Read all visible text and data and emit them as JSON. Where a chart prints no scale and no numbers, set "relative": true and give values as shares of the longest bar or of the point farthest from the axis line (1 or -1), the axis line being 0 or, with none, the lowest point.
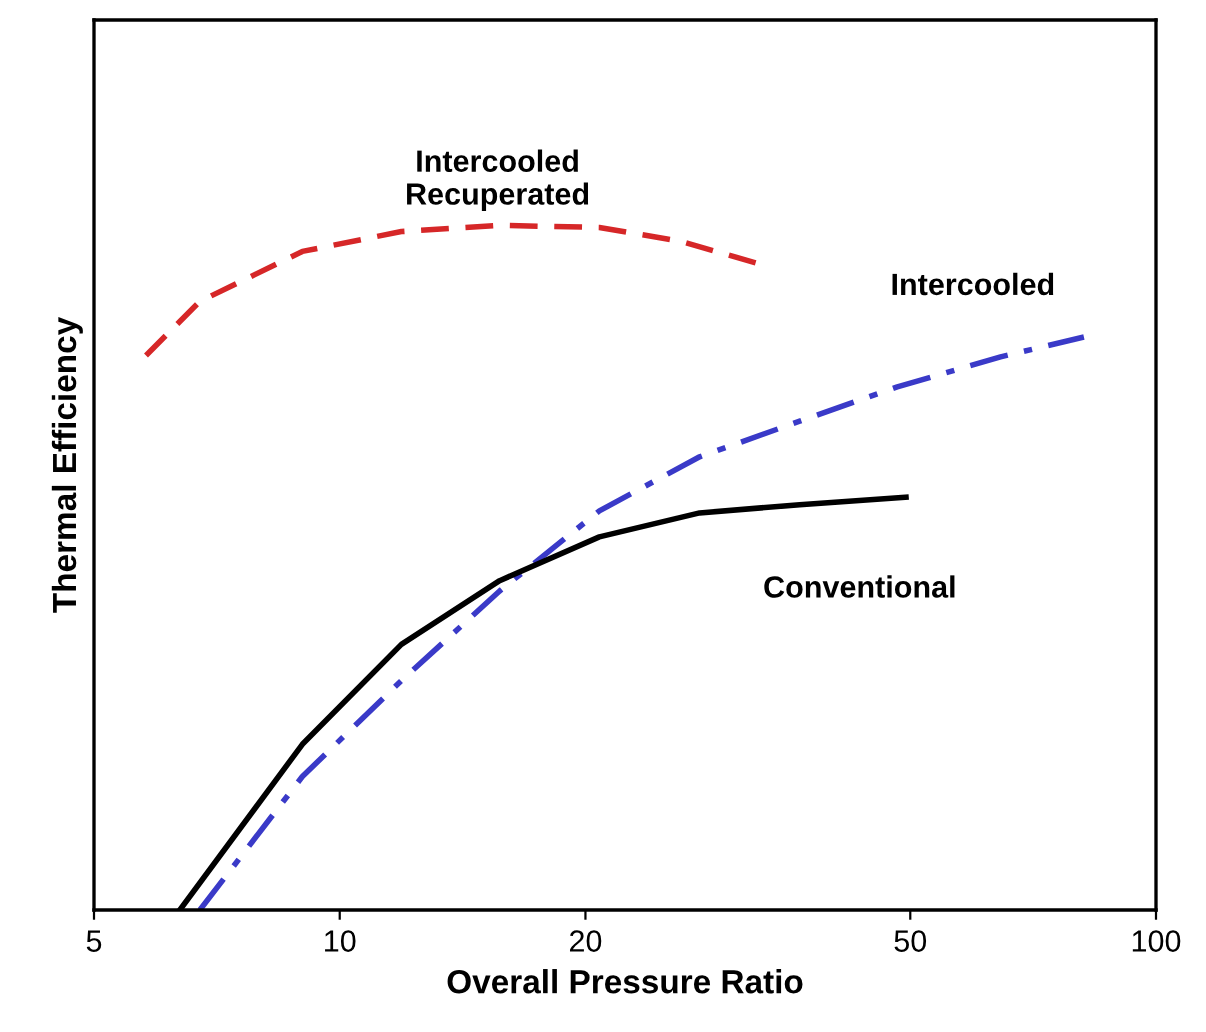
{
  "chart_data": {
    "type": "line",
    "xlabel": "Overall Pressure Ratio",
    "ylabel": "Thermal Efficiency",
    "log": "x",
    "xlim": [
      5,
      100
    ],
    "xticks": [
      5,
      10,
      20,
      50,
      100
    ],
    "relative": true,
    "grid": false,
    "legend": false,
    "series": [
      {
        "name": "Intercooled\nRecuperated",
        "color": "#d62728",
        "line_style": "dashed",
        "x": [
          5.79,
          6.74,
          9.0,
          11.9,
          15.7,
          20.8,
          26.1,
          32.4
        ],
        "values": [
          0.81,
          0.889,
          0.962,
          0.991,
          1.0,
          0.997,
          0.977,
          0.945
        ]
      },
      {
        "name": "Intercooled",
        "color": "#3a3ac8",
        "line_style": "dashdot",
        "x": [
          6.74,
          9.0,
          11.9,
          15.7,
          20.8,
          27.6,
          36.6,
          48.2,
          64.5,
          81.6
        ],
        "values": [
          0,
          0.195,
          0.335,
          0.466,
          0.583,
          0.662,
          0.714,
          0.764,
          0.808,
          0.837
        ]
      },
      {
        "name": "Conventional",
        "color": "#000000",
        "line_style": "solid",
        "x": [
          6.37,
          9.0,
          11.9,
          15.7,
          20.8,
          27.6,
          36.6,
          49.4
        ],
        "values": [
          0,
          0.242,
          0.388,
          0.481,
          0.545,
          0.58,
          0.592,
          0.603
        ]
      }
    ]
  }
}
